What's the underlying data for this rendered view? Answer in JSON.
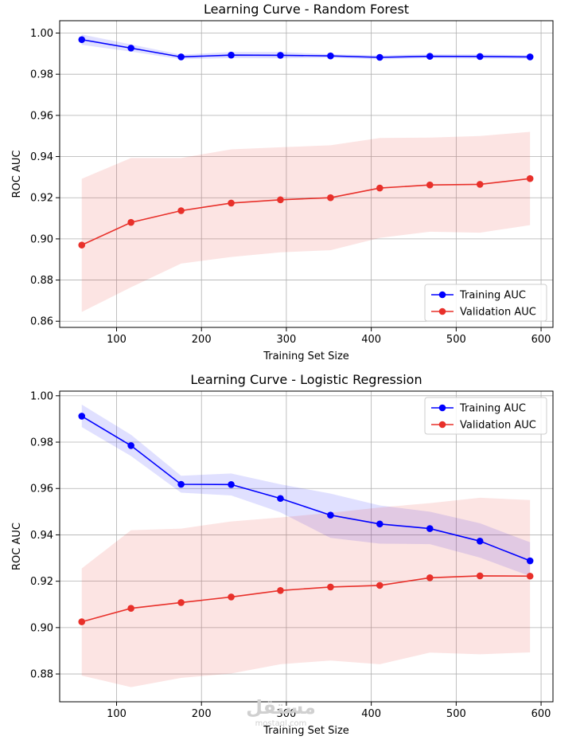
{
  "watermark": {
    "main": "مستقل",
    "sub": "mostaql.com"
  },
  "colors": {
    "training": "#0000ff",
    "validation": "#e8302a",
    "grid": "#b0b0b0"
  },
  "chart_data": [
    {
      "type": "line",
      "title": "Learning Curve - Random Forest",
      "xlabel": "Training Set Size",
      "ylabel": "ROC AUC",
      "xlim": [
        33,
        614
      ],
      "ylim": [
        0.857,
        1.006
      ],
      "xticks": [
        100,
        200,
        300,
        400,
        500,
        600
      ],
      "yticks": [
        0.86,
        0.88,
        0.9,
        0.92,
        0.94,
        0.96,
        0.98,
        1.0
      ],
      "ytick_labels": [
        "0.86",
        "0.88",
        "0.90",
        "0.92",
        "0.94",
        "0.96",
        "0.98",
        "1.00"
      ],
      "grid": true,
      "legend_position": "lower-right",
      "x": [
        59,
        117,
        176,
        235,
        293,
        352,
        410,
        469,
        528,
        587
      ],
      "series": [
        {
          "name": "Training AUC",
          "color": "#0000ff",
          "values": [
            0.9968,
            0.9927,
            0.9884,
            0.9893,
            0.9892,
            0.9889,
            0.9882,
            0.9887,
            0.9886,
            0.9884
          ],
          "band_upper": [
            0.9993,
            0.9945,
            0.9895,
            0.9908,
            0.9908,
            0.9897,
            0.9892,
            0.9897,
            0.9897,
            0.9892
          ],
          "band_lower": [
            0.9943,
            0.991,
            0.9873,
            0.9878,
            0.9877,
            0.988,
            0.9872,
            0.9878,
            0.9875,
            0.9875
          ]
        },
        {
          "name": "Validation AUC",
          "color": "#e8302a",
          "values": [
            0.897,
            0.908,
            0.9137,
            0.9174,
            0.919,
            0.92,
            0.9247,
            0.9262,
            0.9265,
            0.9293
          ],
          "band_upper": [
            0.9292,
            0.9393,
            0.9393,
            0.9435,
            0.9445,
            0.9455,
            0.949,
            0.9492,
            0.95,
            0.952
          ],
          "band_lower": [
            0.8645,
            0.8765,
            0.888,
            0.8912,
            0.8935,
            0.8945,
            0.9005,
            0.9035,
            0.903,
            0.9067
          ]
        }
      ]
    },
    {
      "type": "line",
      "title": "Learning Curve - Logistic Regression",
      "xlabel": "Training Set Size",
      "ylabel": "ROC AUC",
      "xlim": [
        33,
        614
      ],
      "ylim": [
        0.868,
        1.002
      ],
      "xticks": [
        100,
        200,
        300,
        400,
        500,
        600
      ],
      "yticks": [
        0.88,
        0.9,
        0.92,
        0.94,
        0.96,
        0.98,
        1.0
      ],
      "ytick_labels": [
        "0.88",
        "0.90",
        "0.92",
        "0.94",
        "0.96",
        "0.98",
        "1.00"
      ],
      "grid": true,
      "legend_position": "upper-right",
      "x": [
        59,
        117,
        176,
        235,
        293,
        352,
        410,
        469,
        528,
        587
      ],
      "series": [
        {
          "name": "Training AUC",
          "color": "#0000ff",
          "values": [
            0.9912,
            0.9785,
            0.9618,
            0.9617,
            0.9557,
            0.9485,
            0.9447,
            0.9427,
            0.9373,
            0.9288
          ],
          "band_upper": [
            0.9962,
            0.9832,
            0.9655,
            0.9665,
            0.9618,
            0.9578,
            0.9527,
            0.95,
            0.945,
            0.9368
          ],
          "band_lower": [
            0.9865,
            0.974,
            0.9582,
            0.957,
            0.9497,
            0.9387,
            0.9362,
            0.936,
            0.9302,
            0.9222
          ]
        },
        {
          "name": "Validation AUC",
          "color": "#e8302a",
          "values": [
            0.9025,
            0.9083,
            0.9108,
            0.9132,
            0.916,
            0.9175,
            0.9182,
            0.9215,
            0.9223,
            0.9222
          ],
          "band_upper": [
            0.9255,
            0.942,
            0.9427,
            0.9458,
            0.9475,
            0.9495,
            0.9518,
            0.9537,
            0.956,
            0.955
          ],
          "band_lower": [
            0.8793,
            0.8743,
            0.8783,
            0.8802,
            0.8842,
            0.8858,
            0.8842,
            0.8892,
            0.8885,
            0.8893
          ]
        }
      ]
    }
  ]
}
